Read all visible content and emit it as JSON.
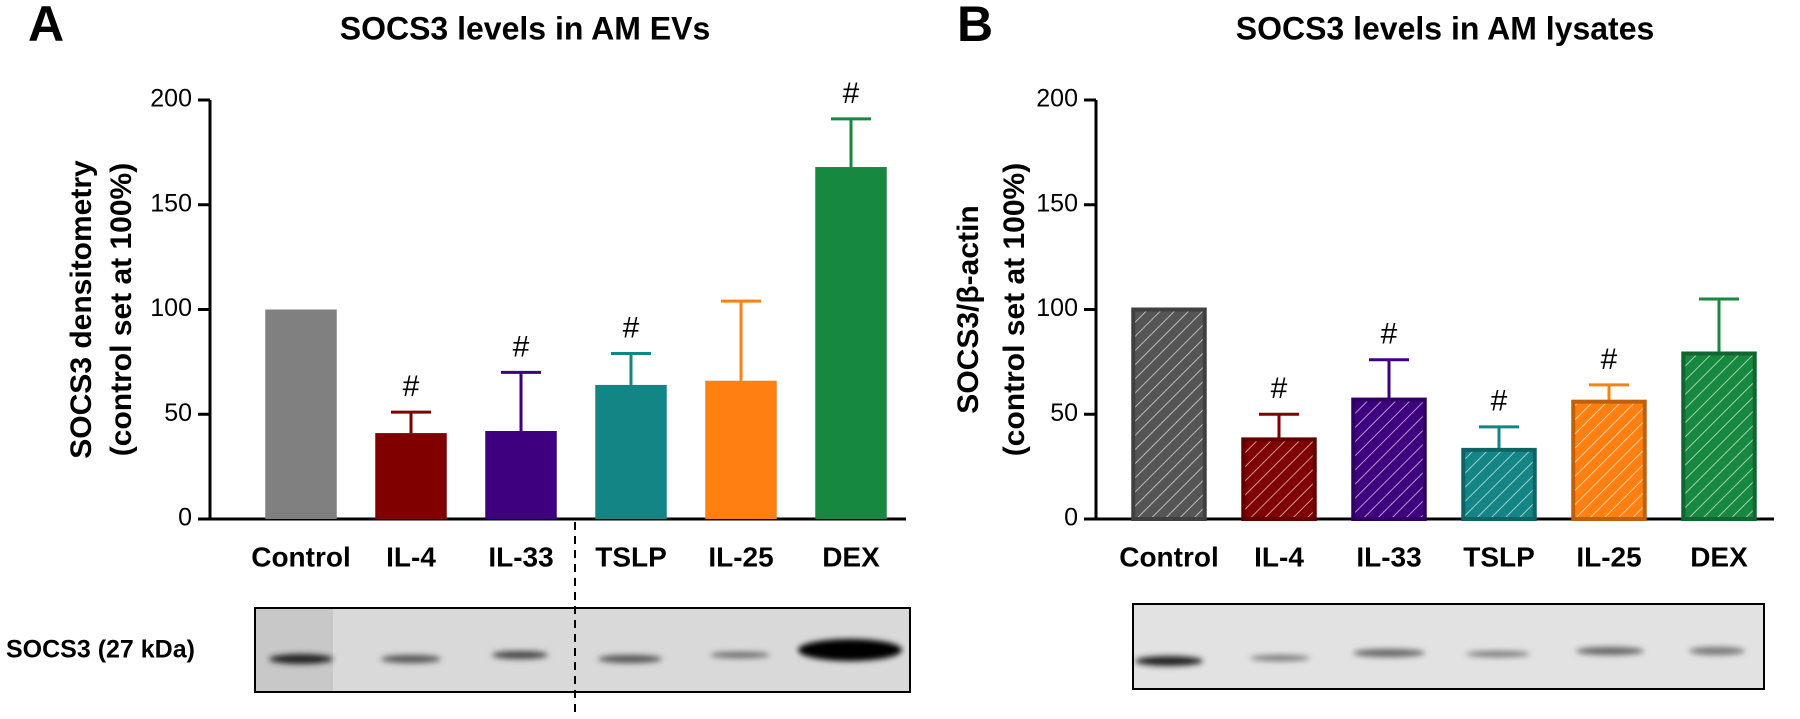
{
  "panel_labels": [
    "A",
    "B"
  ],
  "blot_label": "SOCS3 (27 kDa)",
  "chart_data": [
    {
      "type": "bar",
      "title": "SOCS3 levels in AM EVs",
      "ylabel": [
        "SOCS3 densitometry",
        "(control set at 100%)"
      ],
      "categories": [
        "Control",
        "IL-4",
        "IL-33",
        "TSLP",
        "IL-25",
        "DEX"
      ],
      "values": [
        100,
        41,
        42,
        64,
        66,
        168
      ],
      "errors": [
        null,
        10,
        28,
        15,
        38,
        23
      ],
      "markers": [
        null,
        "#",
        "#",
        "#",
        null,
        "#"
      ],
      "colors": [
        "#808080",
        "#800000",
        "#3f0080",
        "#138585",
        "#ff8010",
        "#16883f"
      ],
      "hatch": false,
      "ylim": [
        0,
        200
      ],
      "yticks": [
        0,
        50,
        100,
        150,
        200
      ]
    },
    {
      "type": "bar",
      "title": "SOCS3 levels in AM lysates",
      "ylabel": [
        "SOCS3/β-actin",
        "(control set at 100%)"
      ],
      "categories": [
        "Control",
        "IL-4",
        "IL-33",
        "TSLP",
        "IL-25",
        "DEX"
      ],
      "values": [
        100,
        38,
        57,
        33,
        56,
        79
      ],
      "errors": [
        null,
        12,
        19,
        11,
        8,
        26
      ],
      "markers": [
        null,
        "#",
        "#",
        "#",
        "#",
        null
      ],
      "colors": [
        "#555555",
        "#800000",
        "#3f0080",
        "#138585",
        "#ff8010",
        "#16883f"
      ],
      "hatch": true,
      "ylim": [
        0,
        200
      ],
      "yticks": [
        0,
        50,
        100,
        150,
        200
      ]
    }
  ]
}
